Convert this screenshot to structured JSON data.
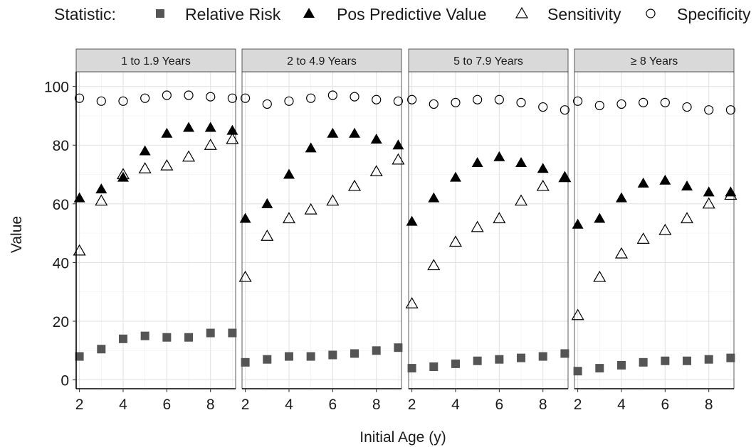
{
  "chart_data": {
    "type": "scatter",
    "legend": {
      "title": "Statistic:",
      "position": "top",
      "entries": [
        {
          "name": "Relative Risk",
          "shape": "square-filled",
          "color": "#555555"
        },
        {
          "name": "Pos Predictive Value",
          "shape": "triangle-filled",
          "color": "#000000"
        },
        {
          "name": "Sensitivity",
          "shape": "triangle-open",
          "color": "#000000"
        },
        {
          "name": "Specificity",
          "shape": "circle-open",
          "color": "#000000"
        }
      ]
    },
    "xlabel": "Initial Age (y)",
    "ylabel": "Value",
    "xlim": [
      1.85,
      9.15
    ],
    "ylim": [
      -3,
      105
    ],
    "xticks": [
      2,
      4,
      6,
      8
    ],
    "yticks": [
      0,
      20,
      40,
      60,
      80,
      100
    ],
    "grid": true,
    "x": [
      2,
      3,
      4,
      5,
      6,
      7,
      8,
      9
    ],
    "panels": [
      {
        "label": "1 to 1.9 Years",
        "series": [
          {
            "name": "Relative Risk",
            "values": [
              8,
              10.5,
              14,
              15,
              14.5,
              14.5,
              16,
              16
            ]
          },
          {
            "name": "Pos Predictive Value",
            "values": [
              62,
              65,
              69,
              78,
              84,
              86,
              86,
              85
            ]
          },
          {
            "name": "Sensitivity",
            "values": [
              44,
              61,
              70,
              72,
              73,
              76,
              80,
              82
            ]
          },
          {
            "name": "Specificity",
            "values": [
              96,
              95,
              95,
              96,
              97,
              97,
              96.5,
              96
            ]
          }
        ]
      },
      {
        "label": "2 to 4.9 Years",
        "series": [
          {
            "name": "Relative Risk",
            "values": [
              6,
              7,
              8,
              8,
              8.5,
              9,
              10,
              11
            ]
          },
          {
            "name": "Pos Predictive Value",
            "values": [
              55,
              60,
              70,
              79,
              84,
              84,
              82,
              80
            ]
          },
          {
            "name": "Sensitivity",
            "values": [
              35,
              49,
              55,
              58,
              61,
              66,
              71,
              75
            ]
          },
          {
            "name": "Specificity",
            "values": [
              96,
              94,
              95,
              96,
              97,
              96.5,
              95.5,
              95
            ]
          }
        ]
      },
      {
        "label": "5 to 7.9 Years",
        "series": [
          {
            "name": "Relative Risk",
            "values": [
              4,
              4.5,
              5.5,
              6.5,
              7,
              7.5,
              8,
              9
            ]
          },
          {
            "name": "Pos Predictive Value",
            "values": [
              54,
              62,
              69,
              74,
              76,
              74,
              72,
              69
            ]
          },
          {
            "name": "Sensitivity",
            "values": [
              26,
              39,
              47,
              52,
              55,
              61,
              66,
              69
            ]
          },
          {
            "name": "Specificity",
            "values": [
              95.5,
              94,
              94.5,
              95.5,
              95.5,
              94.5,
              93,
              92
            ]
          }
        ]
      },
      {
        "label": "≥ 8 Years",
        "series": [
          {
            "name": "Relative Risk",
            "values": [
              3,
              4,
              5,
              6,
              6.5,
              6.5,
              7,
              7.5
            ]
          },
          {
            "name": "Pos Predictive Value",
            "values": [
              53,
              55,
              62,
              67,
              68,
              66,
              64,
              64
            ]
          },
          {
            "name": "Sensitivity",
            "values": [
              22,
              35,
              43,
              48,
              51,
              55,
              60,
              63
            ]
          },
          {
            "name": "Specificity",
            "values": [
              95,
              93.5,
              94,
              94.5,
              94.5,
              93,
              92,
              92
            ]
          }
        ]
      }
    ]
  }
}
